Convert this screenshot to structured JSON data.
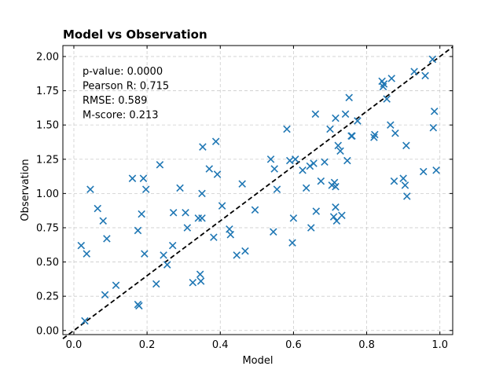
{
  "chart_data": {
    "type": "scatter",
    "title": "Model vs Observation",
    "xlabel": "Model",
    "ylabel": "Observation",
    "xlim": [
      -0.03,
      1.035
    ],
    "ylim": [
      -0.03,
      2.08
    ],
    "x_ticks": [
      0.0,
      0.2,
      0.4,
      0.6,
      0.8,
      1.0
    ],
    "x_tick_labels": [
      "0.0",
      "0.2",
      "0.4",
      "0.6",
      "0.8",
      "1.0"
    ],
    "y_ticks": [
      0.0,
      0.25,
      0.5,
      0.75,
      1.0,
      1.25,
      1.5,
      1.75,
      2.0
    ],
    "y_tick_labels": [
      "0.00",
      "0.25",
      "0.50",
      "0.75",
      "1.00",
      "1.25",
      "1.50",
      "1.75",
      "2.00"
    ],
    "grid": true,
    "reference_line": {
      "style": "dashed",
      "color": "#000000",
      "slope": 2.0,
      "intercept": 0.0
    },
    "annotations": [
      "p-value: 0.0000",
      "Pearson R: 0.715",
      "RMSE: 0.589",
      "M-score: 0.213"
    ],
    "marker": "x",
    "series": [
      {
        "color": "#1f77b4",
        "points": [
          [
            0.02,
            0.62
          ],
          [
            0.03,
            0.07
          ],
          [
            0.035,
            0.56
          ],
          [
            0.045,
            1.03
          ],
          [
            0.065,
            0.89
          ],
          [
            0.08,
            0.8
          ],
          [
            0.085,
            0.26
          ],
          [
            0.09,
            0.67
          ],
          [
            0.115,
            0.33
          ],
          [
            0.16,
            1.11
          ],
          [
            0.175,
            0.73
          ],
          [
            0.175,
            0.19
          ],
          [
            0.178,
            0.18
          ],
          [
            0.185,
            0.85
          ],
          [
            0.19,
            1.11
          ],
          [
            0.193,
            0.56
          ],
          [
            0.197,
            1.03
          ],
          [
            0.225,
            0.34
          ],
          [
            0.235,
            1.21
          ],
          [
            0.245,
            0.55
          ],
          [
            0.255,
            0.48
          ],
          [
            0.27,
            0.62
          ],
          [
            0.272,
            0.86
          ],
          [
            0.29,
            1.04
          ],
          [
            0.305,
            0.86
          ],
          [
            0.31,
            0.75
          ],
          [
            0.325,
            0.35
          ],
          [
            0.34,
            0.82
          ],
          [
            0.345,
            0.41
          ],
          [
            0.347,
            0.36
          ],
          [
            0.35,
            1.0
          ],
          [
            0.35,
            0.82
          ],
          [
            0.352,
            1.34
          ],
          [
            0.37,
            1.18
          ],
          [
            0.382,
            0.68
          ],
          [
            0.388,
            1.38
          ],
          [
            0.392,
            1.14
          ],
          [
            0.405,
            0.91
          ],
          [
            0.425,
            0.74
          ],
          [
            0.428,
            0.7
          ],
          [
            0.445,
            0.55
          ],
          [
            0.46,
            1.07
          ],
          [
            0.468,
            0.58
          ],
          [
            0.495,
            0.88
          ],
          [
            0.538,
            1.25
          ],
          [
            0.545,
            0.72
          ],
          [
            0.548,
            1.18
          ],
          [
            0.555,
            1.03
          ],
          [
            0.582,
            1.47
          ],
          [
            0.59,
            1.24
          ],
          [
            0.597,
            0.64
          ],
          [
            0.6,
            0.82
          ],
          [
            0.605,
            1.25
          ],
          [
            0.625,
            1.17
          ],
          [
            0.635,
            1.04
          ],
          [
            0.645,
            1.2
          ],
          [
            0.648,
            0.75
          ],
          [
            0.655,
            1.22
          ],
          [
            0.66,
            1.58
          ],
          [
            0.662,
            0.87
          ],
          [
            0.675,
            1.09
          ],
          [
            0.685,
            1.23
          ],
          [
            0.7,
            1.47
          ],
          [
            0.705,
            1.06
          ],
          [
            0.71,
            0.83
          ],
          [
            0.712,
            1.08
          ],
          [
            0.715,
            0.9
          ],
          [
            0.715,
            1.55
          ],
          [
            0.715,
            1.05
          ],
          [
            0.718,
            0.8
          ],
          [
            0.722,
            1.35
          ],
          [
            0.728,
            1.31
          ],
          [
            0.732,
            0.84
          ],
          [
            0.742,
            1.58
          ],
          [
            0.747,
            1.24
          ],
          [
            0.752,
            1.7
          ],
          [
            0.758,
            1.42
          ],
          [
            0.76,
            1.42
          ],
          [
            0.775,
            1.53
          ],
          [
            0.82,
            1.41
          ],
          [
            0.822,
            1.43
          ],
          [
            0.842,
            1.82
          ],
          [
            0.845,
            1.78
          ],
          [
            0.847,
            1.8
          ],
          [
            0.855,
            1.69
          ],
          [
            0.865,
            1.5
          ],
          [
            0.868,
            1.84
          ],
          [
            0.875,
            1.09
          ],
          [
            0.878,
            1.44
          ],
          [
            0.9,
            1.11
          ],
          [
            0.905,
            1.06
          ],
          [
            0.908,
            1.35
          ],
          [
            0.91,
            0.98
          ],
          [
            0.93,
            1.89
          ],
          [
            0.955,
            1.16
          ],
          [
            0.96,
            1.86
          ],
          [
            0.98,
            1.98
          ],
          [
            0.982,
            1.48
          ],
          [
            0.985,
            1.6
          ],
          [
            0.99,
            1.17
          ]
        ]
      }
    ]
  }
}
